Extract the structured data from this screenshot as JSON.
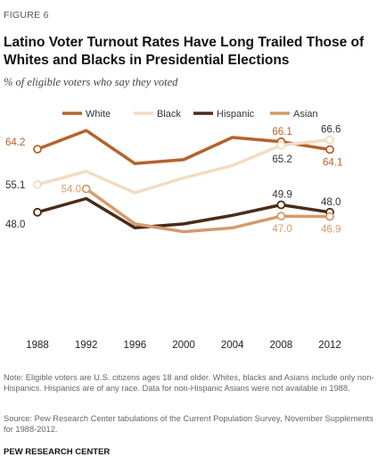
{
  "figure_label": "FIGURE 6",
  "title": "Latino Voter Turnout Rates Have Long Trailed Those of Whites and Blacks in Presidential Elections",
  "subtitle": "% of eligible voters who say they voted",
  "note": "Note: Eligible voters are U.S. citizens ages 18 and older. Whites, blacks and Asians include only non-Hispanics. Hispanics are of any race. Data for non-Hispanic Asians were not available in 1988.",
  "source": "Source: Pew Research Center tabulations of the Current Population Survey, November Supplements for 1988-2012.",
  "org": "PEW RESEARCH CENTER",
  "colors": {
    "White": "#b5622b",
    "Black": "#f2dcc4",
    "Hispanic": "#4a2c18",
    "Asian": "#d69a6c"
  },
  "chart_data": {
    "type": "line",
    "title": "Latino Voter Turnout Rates Have Long Trailed Those of Whites and Blacks in Presidential Elections",
    "subtitle": "% of eligible voters who say they voted",
    "x": [
      "1988",
      "1992",
      "1996",
      "2000",
      "2004",
      "2008",
      "2012"
    ],
    "ylim": [
      20,
      75
    ],
    "grid": false,
    "legend_position": "top",
    "series": [
      {
        "name": "White",
        "values": [
          64.2,
          69.0,
          60.5,
          61.5,
          67.2,
          66.1,
          64.1
        ]
      },
      {
        "name": "Black",
        "values": [
          55.1,
          58.5,
          53.0,
          56.8,
          60.0,
          65.2,
          66.6
        ]
      },
      {
        "name": "Hispanic",
        "values": [
          48.0,
          51.5,
          44.0,
          45.0,
          47.2,
          49.9,
          48.0
        ]
      },
      {
        "name": "Asian",
        "values": [
          null,
          54.0,
          45.0,
          43.0,
          44.0,
          47.0,
          46.9
        ]
      }
    ],
    "data_labels": [
      {
        "series": "White",
        "index": 0,
        "text": "64.2"
      },
      {
        "series": "Black",
        "index": 0,
        "text": "55.1"
      },
      {
        "series": "Hispanic",
        "index": 0,
        "text": "48.0"
      },
      {
        "series": "Asian",
        "index": 1,
        "text": "54.0"
      },
      {
        "series": "White",
        "index": 5,
        "text": "66.1"
      },
      {
        "series": "Black",
        "index": 5,
        "text": "65.2"
      },
      {
        "series": "Hispanic",
        "index": 5,
        "text": "49.9"
      },
      {
        "series": "Asian",
        "index": 5,
        "text": "47.0"
      },
      {
        "series": "Black",
        "index": 6,
        "text": "66.6"
      },
      {
        "series": "White",
        "index": 6,
        "text": "64.1"
      },
      {
        "series": "Hispanic",
        "index": 6,
        "text": "48.0"
      },
      {
        "series": "Asian",
        "index": 6,
        "text": "46.9"
      }
    ]
  }
}
